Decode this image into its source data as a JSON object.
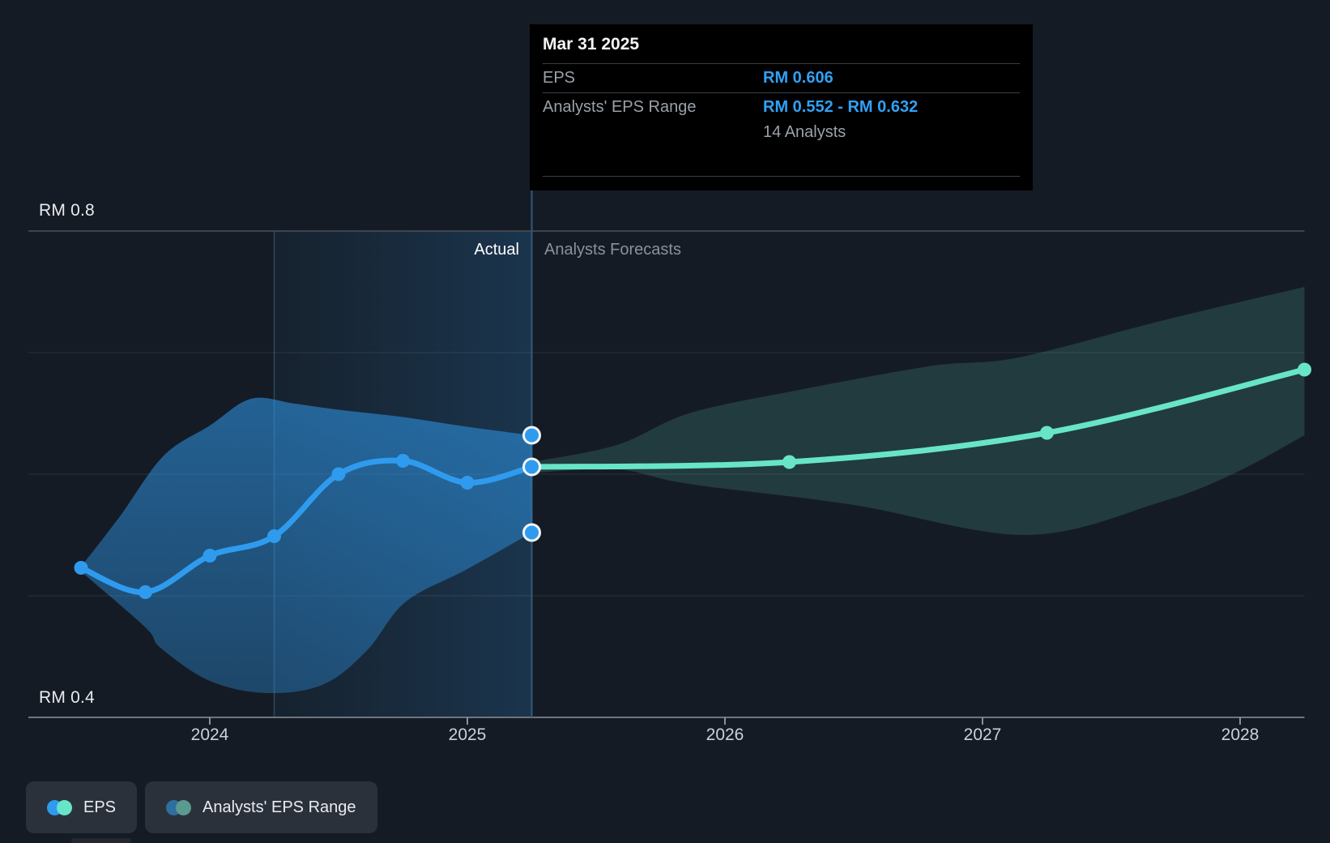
{
  "colors": {
    "background": "#151b24",
    "eps_blue": "#2F9BEF",
    "forecast_teal": "#68E5C8",
    "tooltip_value_blue": "#31A1F5",
    "legend_range_blue": "#2E6F9F",
    "legend_range_teal": "#5A9A90",
    "divider_line": "#35587A",
    "grid_faint": "rgba(255,255,255,0.10)",
    "grid_top": "#4A515B",
    "axis_line": "#6E757E",
    "marker_ring": "#F3F6F8"
  },
  "tooltip": {
    "date": "Mar 31 2025",
    "eps_label": "EPS",
    "eps_value": "RM 0.606",
    "range_label": "Analysts' EPS Range",
    "range_value": "RM 0.552 - RM 0.632",
    "analysts_note": "14 Analysts"
  },
  "chart": {
    "actual_label": "Actual",
    "forecast_label": "Analysts Forecasts",
    "y_top_label": "RM 0.8",
    "y_bottom_label": "RM 0.4",
    "x_labels": [
      "2024",
      "2025",
      "2026",
      "2027",
      "2028"
    ]
  },
  "legend": {
    "items": [
      {
        "label": "EPS"
      },
      {
        "label": "Analysts' EPS Range"
      }
    ]
  },
  "chart_data": {
    "type": "line",
    "currency": "RM",
    "y_axis": {
      "min": 0.4,
      "max": 0.8,
      "gridline_values": [
        0.8,
        0.7,
        0.6,
        0.5,
        0.4
      ],
      "top_label": "RM 0.8",
      "bottom_label": "RM 0.4"
    },
    "x_axis": {
      "tick_years": [
        2024,
        2025,
        2026,
        2027,
        2028
      ]
    },
    "divider": {
      "x_year": 2025.25,
      "left_label": "Actual",
      "right_label": "Analysts Forecasts"
    },
    "highlight_span": {
      "from": 2024.25,
      "to": 2025.25
    },
    "actual": {
      "name": "EPS (actual)",
      "dates": [
        "Jun 30 2023",
        "Sep 30 2023",
        "Dec 31 2023",
        "Mar 31 2024",
        "Jun 30 2024",
        "Sep 30 2024",
        "Dec 31 2024",
        "Mar 31 2025"
      ],
      "x": [
        2023.5,
        2023.75,
        2024.0,
        2024.25,
        2024.5,
        2024.75,
        2025.0,
        2025.25
      ],
      "values": [
        0.523,
        0.503,
        0.533,
        0.549,
        0.6,
        0.611,
        0.593,
        0.606
      ]
    },
    "forecast": {
      "name": "EPS (analysts forecast)",
      "dates": [
        "Mar 31 2025",
        "Mar 31 2026",
        "Mar 31 2027",
        "Mar 31 2028"
      ],
      "x": [
        2025.25,
        2026.25,
        2027.25,
        2028.25
      ],
      "values": [
        0.606,
        0.61,
        0.634,
        0.686
      ]
    },
    "actual_range_band": {
      "top": [
        [
          2023.5,
          0.524
        ],
        [
          2023.65,
          0.565
        ],
        [
          2023.82,
          0.615
        ],
        [
          2024.0,
          0.64
        ],
        [
          2024.16,
          0.662
        ],
        [
          2024.33,
          0.658
        ],
        [
          2024.5,
          0.653
        ],
        [
          2024.75,
          0.647
        ],
        [
          2025.0,
          0.639
        ],
        [
          2025.25,
          0.632
        ]
      ],
      "bottom": [
        [
          2023.5,
          0.52
        ],
        [
          2023.75,
          0.474
        ],
        [
          2023.81,
          0.457
        ],
        [
          2024.0,
          0.43
        ],
        [
          2024.22,
          0.42
        ],
        [
          2024.44,
          0.427
        ],
        [
          2024.61,
          0.455
        ],
        [
          2024.76,
          0.495
        ],
        [
          2025.0,
          0.522
        ],
        [
          2025.25,
          0.552
        ]
      ]
    },
    "forecast_range_band": {
      "top": [
        [
          2025.25,
          0.61
        ],
        [
          2025.58,
          0.624
        ],
        [
          2025.86,
          0.65
        ],
        [
          2026.28,
          0.669
        ],
        [
          2026.8,
          0.689
        ],
        [
          2027.14,
          0.696
        ],
        [
          2027.71,
          0.727
        ],
        [
          2028.25,
          0.754
        ]
      ],
      "bottom": [
        [
          2025.25,
          0.601
        ],
        [
          2025.58,
          0.604
        ],
        [
          2025.86,
          0.592
        ],
        [
          2026.49,
          0.575
        ],
        [
          2027.17,
          0.55
        ],
        [
          2027.69,
          0.577
        ],
        [
          2027.98,
          0.601
        ],
        [
          2028.25,
          0.632
        ]
      ]
    },
    "range_markers": {
      "x_year": 2025.25,
      "values": [
        0.632,
        0.606,
        0.552
      ]
    }
  }
}
